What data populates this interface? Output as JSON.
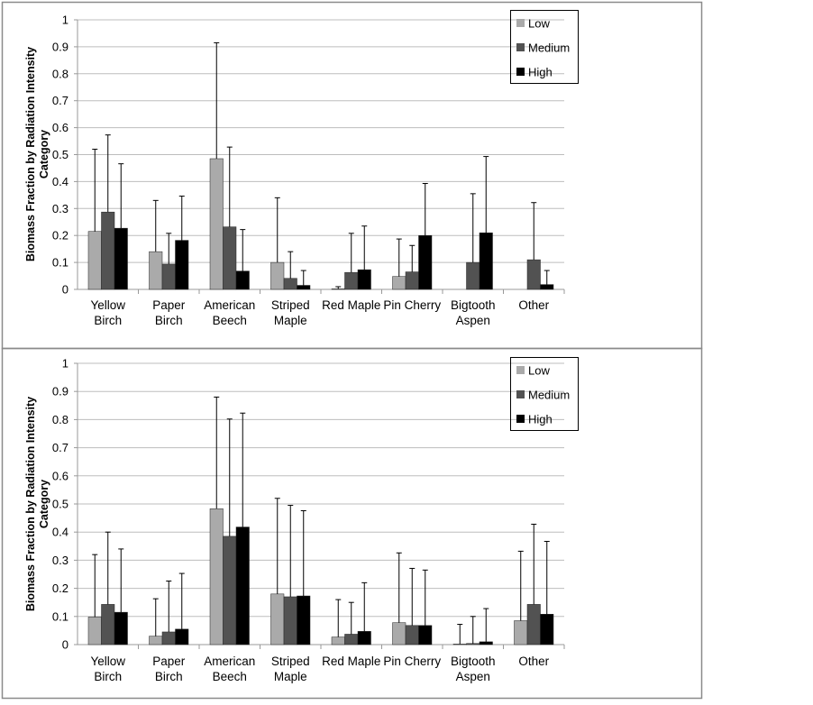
{
  "colors": {
    "Low": "#aaaaaa",
    "Medium": "#525252",
    "High": "#000000",
    "grid": "#bdbdbd"
  },
  "chart_data": [
    {
      "type": "bar",
      "ylabel": [
        "Biomass Fraction by Radiation Intensity",
        "Category"
      ],
      "ylim": [
        0,
        1
      ],
      "yticks": [
        "0",
        "0.1",
        "0.2",
        "0.3",
        "0.4",
        "0.5",
        "0.6",
        "0.7",
        "0.8",
        "0.9",
        "1"
      ],
      "categories": [
        [
          "Yellow",
          "Birch"
        ],
        [
          "Paper",
          "Birch"
        ],
        [
          "American",
          "Beech"
        ],
        [
          "Striped",
          "Maple"
        ],
        [
          "Red Maple"
        ],
        [
          "Pin Cherry"
        ],
        [
          "Bigtooth",
          "Aspen"
        ],
        [
          "Other"
        ]
      ],
      "legend": "top-right",
      "series": [
        {
          "name": "Low",
          "values": [
            0.215,
            0.14,
            0.485,
            0.1,
            0.002,
            0.048,
            0,
            0
          ],
          "error_top": [
            0.52,
            0.33,
            0.915,
            0.34,
            0.01,
            0.187,
            null,
            null
          ]
        },
        {
          "name": "Medium",
          "values": [
            0.287,
            0.094,
            0.232,
            0.041,
            0.063,
            0.065,
            0.1,
            0.11
          ],
          "error_top": [
            0.573,
            0.208,
            0.528,
            0.14,
            0.208,
            0.163,
            0.355,
            0.322
          ]
        },
        {
          "name": "High",
          "values": [
            0.227,
            0.182,
            0.068,
            0.015,
            0.073,
            0.2,
            0.21,
            0.018
          ],
          "error_top": [
            0.466,
            0.346,
            0.222,
            0.07,
            0.235,
            0.393,
            0.493,
            0.07
          ]
        }
      ]
    },
    {
      "type": "bar",
      "ylabel": [
        "Biomass Fraction by Radiation Intensity",
        "Category"
      ],
      "ylim": [
        0,
        1
      ],
      "yticks": [
        "0",
        "0.1",
        "0.2",
        "0.3",
        "0.4",
        "0.5",
        "0.6",
        "0.7",
        "0.8",
        "0.9",
        "1"
      ],
      "categories": [
        [
          "Yellow",
          "Birch"
        ],
        [
          "Paper",
          "Birch"
        ],
        [
          "American",
          "Beech"
        ],
        [
          "Striped",
          "Maple"
        ],
        [
          "Red Maple"
        ],
        [
          "Pin Cherry"
        ],
        [
          "Bigtooth",
          "Aspen"
        ],
        [
          "Other"
        ]
      ],
      "legend": "top-right",
      "series": [
        {
          "name": "Low",
          "values": [
            0.098,
            0.03,
            0.483,
            0.18,
            0.027,
            0.078,
            0.002,
            0.085
          ],
          "error_top": [
            0.32,
            0.163,
            0.88,
            0.52,
            0.16,
            0.326,
            0.072,
            0.332
          ]
        },
        {
          "name": "Medium",
          "values": [
            0.143,
            0.045,
            0.385,
            0.17,
            0.037,
            0.068,
            0.004,
            0.143
          ],
          "error_top": [
            0.4,
            0.226,
            0.802,
            0.495,
            0.15,
            0.271,
            0.1,
            0.428
          ]
        },
        {
          "name": "High",
          "values": [
            0.115,
            0.055,
            0.418,
            0.173,
            0.047,
            0.068,
            0.01,
            0.108
          ],
          "error_top": [
            0.34,
            0.253,
            0.823,
            0.476,
            0.22,
            0.265,
            0.128,
            0.367
          ]
        }
      ]
    }
  ]
}
